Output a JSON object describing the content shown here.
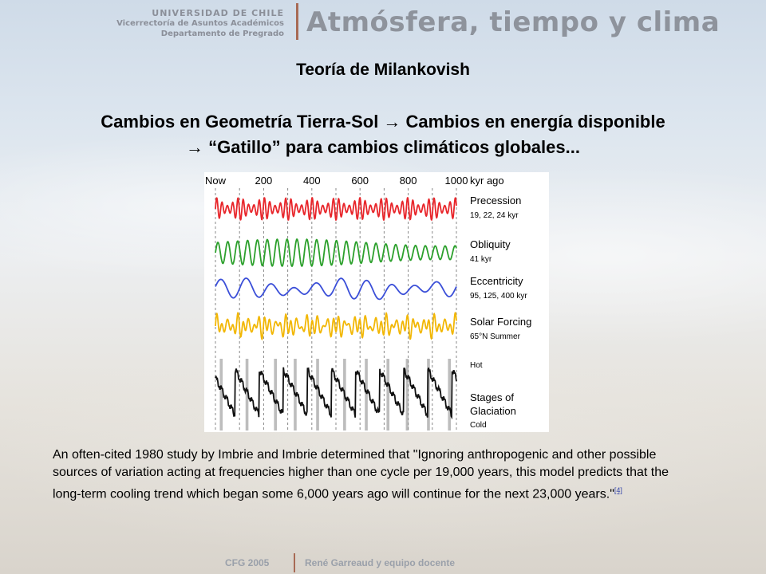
{
  "header": {
    "university": "UNIVERSIDAD DE CHILE",
    "vicerrectoria": "Vicerrectoría de Asuntos Académicos",
    "departamento": "Departamento de Pregrado",
    "course_title": "Atmósfera, tiempo y clima"
  },
  "slide": {
    "title": "Teoría de Milankovish",
    "subtitle_line1": "Cambios en Geometría Tierra-Sol → Cambios en energía disponible",
    "subtitle_line2": "→ “Gatillo” para cambios climáticos globales...",
    "body": "An often-cited 1980 study by Imbrie and Imbrie determined that \"Ignoring anthropogenic and other possible sources of variation acting at frequencies higher than one cycle per 19,000 years, this model predicts that the long-term cooling trend which began some 6,000 years ago will continue for the next 23,000 years.\"",
    "citation": "[4]"
  },
  "footer": {
    "left": "CFG 2005",
    "right": "René Garreaud y equipo docente"
  },
  "chart_data": {
    "type": "line",
    "x_ticks": [
      "Now",
      "200",
      "400",
      "600",
      "800",
      "1000"
    ],
    "x_unit": "kyr ago",
    "xlim": [
      0,
      1000
    ],
    "series": [
      {
        "name": "Precession",
        "detail": "19, 22, 24 kyr",
        "color": "#e8262b"
      },
      {
        "name": "Obliquity",
        "detail": "41 kyr",
        "color": "#2ca02c"
      },
      {
        "name": "Eccentricity",
        "detail": "95, 125, 400 kyr",
        "color": "#3b4fd8"
      },
      {
        "name": "Solar Forcing",
        "detail": "65°N Summer",
        "color": "#f2b705"
      },
      {
        "name": "Stages of Glaciation",
        "detail": "",
        "color": "#111111"
      }
    ],
    "glaciation_labels": {
      "top": "Hot",
      "bottom": "Cold"
    },
    "shaded_bands_kyr": [
      [
        18,
        30
      ],
      [
        125,
        137
      ],
      [
        243,
        255
      ],
      [
        325,
        337
      ],
      [
        418,
        430
      ],
      [
        530,
        542
      ],
      [
        620,
        632
      ],
      [
        710,
        722
      ],
      [
        790,
        802
      ],
      [
        878,
        890
      ],
      [
        965,
        977
      ]
    ]
  }
}
